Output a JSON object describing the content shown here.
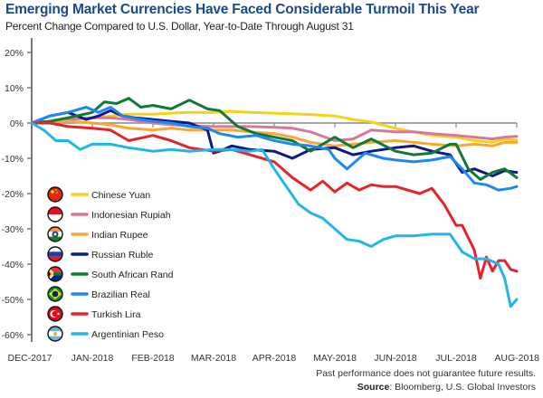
{
  "chart_data": {
    "type": "line",
    "title": "Emerging Market Currencies Have Faced Considerable Turmoil This Year",
    "subtitle": "Percent Change Compared to U.S. Dollar, Year-to-Date Through August 31",
    "xlabel": "",
    "ylabel": "",
    "x_ticks": [
      "DEC-2017",
      "JAN-2018",
      "FEB-2018",
      "MAR-2018",
      "APR-2018",
      "MAY-2018",
      "JUN-2018",
      "JUL-2018",
      "AUG-2018"
    ],
    "x_unit": "months since DEC-2017",
    "xlim": [
      0,
      8
    ],
    "y_ticks": [
      20,
      10,
      0,
      -10,
      -20,
      -30,
      -40,
      -50,
      -60
    ],
    "y_tick_labels": [
      "20%",
      "10%",
      "0%",
      "-10%",
      "-20%",
      "-30%",
      "-40%",
      "-50%",
      "-60%"
    ],
    "ylim": [
      -62,
      25
    ],
    "grid": false,
    "legend_position": "left-center",
    "series": [
      {
        "name": "Chinese Yuan",
        "color": "#f7d117",
        "flag": "china",
        "x": [
          0,
          0.3,
          0.6,
          1.0,
          1.3,
          1.6,
          2.0,
          2.3,
          2.6,
          3.0,
          3.3,
          3.6,
          4.0,
          4.3,
          4.6,
          5.0,
          5.3,
          5.6,
          6.0,
          6.3,
          6.6,
          7.0,
          7.3,
          7.6,
          7.8,
          8.0
        ],
        "y": [
          0,
          0.5,
          1.0,
          1.5,
          2.0,
          2.5,
          2.5,
          2.8,
          3.0,
          3.0,
          3.3,
          3.0,
          2.8,
          2.6,
          2.4,
          2.0,
          1.0,
          0.3,
          -1.5,
          -2.5,
          -3.5,
          -4.0,
          -5.0,
          -5.5,
          -4.5,
          -4.8
        ]
      },
      {
        "name": "Indonesian Rupiah",
        "color": "#d9779a",
        "flag": "indonesia",
        "x": [
          0,
          0.3,
          0.6,
          1.0,
          1.3,
          1.6,
          2.0,
          2.3,
          2.6,
          3.0,
          3.3,
          3.6,
          4.0,
          4.3,
          4.6,
          5.0,
          5.3,
          5.6,
          6.0,
          6.3,
          6.6,
          7.0,
          7.3,
          7.6,
          7.8,
          8.0
        ],
        "y": [
          0,
          0.5,
          1.0,
          1.5,
          1.5,
          1.0,
          0.0,
          -0.5,
          -0.8,
          -1.0,
          -1.0,
          -1.0,
          -1.2,
          -1.5,
          -2.5,
          -5.0,
          -4.5,
          -2.0,
          -2.5,
          -2.5,
          -3.0,
          -3.5,
          -4.0,
          -4.5,
          -4.0,
          -3.8
        ]
      },
      {
        "name": "Indian Rupee",
        "color": "#f8a830",
        "flag": "india",
        "x": [
          0,
          0.3,
          0.6,
          1.0,
          1.3,
          1.6,
          2.0,
          2.3,
          2.6,
          3.0,
          3.3,
          3.6,
          4.0,
          4.3,
          4.6,
          5.0,
          5.3,
          5.6,
          6.0,
          6.3,
          6.6,
          7.0,
          7.3,
          7.6,
          7.8,
          8.0
        ],
        "y": [
          0,
          0.2,
          0.5,
          0.0,
          -0.5,
          -1.5,
          -2.0,
          -1.5,
          -2.0,
          -2.0,
          -2.0,
          -2.5,
          -3.0,
          -4.0,
          -5.5,
          -6.5,
          -6.0,
          -5.5,
          -5.0,
          -5.5,
          -6.0,
          -6.5,
          -6.0,
          -6.5,
          -5.5,
          -5.5
        ]
      },
      {
        "name": "Russian Ruble",
        "color": "#0c1b87",
        "flag": "russia",
        "x": [
          0,
          0.3,
          0.6,
          0.9,
          1.1,
          1.3,
          1.5,
          1.7,
          2.0,
          2.3,
          2.6,
          2.9,
          3.0,
          3.1,
          3.3,
          3.6,
          4.0,
          4.3,
          4.6,
          5.0,
          5.3,
          5.6,
          6.0,
          6.3,
          6.6,
          6.9,
          7.1,
          7.3,
          7.6,
          7.8,
          8.0
        ],
        "y": [
          0,
          2.0,
          3.0,
          1.0,
          2.0,
          3.5,
          2.0,
          1.5,
          1.0,
          0.5,
          0.0,
          -2.0,
          -8.5,
          -8.0,
          -6.5,
          -7.5,
          -8.0,
          -10.0,
          -7.5,
          -7.0,
          -9.0,
          -8.0,
          -7.0,
          -6.5,
          -8.0,
          -9.0,
          -14.0,
          -13.0,
          -15.0,
          -13.5,
          -14.0
        ]
      },
      {
        "name": "South African Rand",
        "color": "#0f7a35",
        "flag": "south-africa",
        "x": [
          0,
          0.3,
          0.6,
          1.0,
          1.2,
          1.4,
          1.6,
          1.8,
          2.0,
          2.3,
          2.6,
          2.9,
          3.1,
          3.4,
          3.7,
          4.0,
          4.3,
          4.6,
          5.0,
          5.3,
          5.6,
          6.0,
          6.3,
          6.6,
          6.9,
          7.0,
          7.2,
          7.4,
          7.6,
          7.8,
          8.0
        ],
        "y": [
          0,
          0.5,
          1.5,
          3.0,
          6.0,
          5.5,
          7.0,
          4.5,
          5.0,
          4.0,
          6.5,
          4.0,
          3.5,
          -1.0,
          -3.0,
          -4.0,
          -5.0,
          -8.0,
          -4.0,
          -7.0,
          -4.5,
          -8.0,
          -9.0,
          -8.5,
          -6.0,
          -6.0,
          -13.0,
          -16.0,
          -14.0,
          -13.0,
          -15.5
        ]
      },
      {
        "name": "Brazilian Real",
        "color": "#1e88f0",
        "flag": "brazil",
        "x": [
          0,
          0.3,
          0.6,
          0.9,
          1.1,
          1.3,
          1.5,
          1.8,
          2.0,
          2.3,
          2.6,
          2.9,
          3.1,
          3.4,
          3.7,
          4.0,
          4.3,
          4.6,
          4.9,
          5.0,
          5.2,
          5.5,
          5.8,
          6.0,
          6.3,
          6.6,
          6.9,
          7.1,
          7.3,
          7.5,
          7.7,
          7.9,
          8.0
        ],
        "y": [
          0,
          2.0,
          3.0,
          4.5,
          3.0,
          4.5,
          2.0,
          1.0,
          0.5,
          0.0,
          -1.0,
          -1.5,
          -3.0,
          -4.0,
          -3.5,
          -5.0,
          -6.0,
          -6.5,
          -7.5,
          -10.0,
          -13.0,
          -8.5,
          -10.0,
          -10.5,
          -11.0,
          -10.5,
          -9.5,
          -13.0,
          -17.0,
          -17.5,
          -19.0,
          -18.5,
          -18.0
        ]
      },
      {
        "name": "Turkish Lira",
        "color": "#e5232b",
        "flag": "turkey",
        "x": [
          0,
          0.3,
          0.6,
          1.0,
          1.3,
          1.6,
          2.0,
          2.3,
          2.6,
          3.0,
          3.3,
          3.6,
          4.0,
          4.3,
          4.6,
          4.8,
          5.0,
          5.2,
          5.4,
          5.6,
          5.8,
          6.0,
          6.2,
          6.4,
          6.6,
          6.8,
          7.0,
          7.1,
          7.3,
          7.4,
          7.5,
          7.6,
          7.7,
          7.8,
          7.9,
          8.0
        ],
        "y": [
          0,
          0.0,
          -1.0,
          -1.5,
          -2.0,
          -5.0,
          -3.5,
          -5.0,
          -7.0,
          -8.0,
          -7.5,
          -9.0,
          -11.0,
          -15.5,
          -19.0,
          -16.5,
          -19.5,
          -17.0,
          -19.0,
          -17.5,
          -18.0,
          -18.0,
          -19.0,
          -20.0,
          -18.5,
          -23.0,
          -29.0,
          -29.0,
          -36.0,
          -44.0,
          -38.0,
          -42.0,
          -39.0,
          -39.0,
          -41.5,
          -42.0
        ]
      },
      {
        "name": "Argentinian Peso",
        "color": "#22b5e8",
        "flag": "argentina",
        "x": [
          0,
          0.2,
          0.4,
          0.6,
          0.8,
          1.0,
          1.3,
          1.6,
          2.0,
          2.3,
          2.6,
          3.0,
          3.3,
          3.6,
          3.8,
          4.0,
          4.2,
          4.4,
          4.6,
          4.8,
          5.0,
          5.2,
          5.4,
          5.6,
          5.8,
          6.0,
          6.3,
          6.6,
          6.9,
          7.1,
          7.3,
          7.5,
          7.7,
          7.8,
          7.9,
          8.0
        ],
        "y": [
          0,
          -2.0,
          -5.0,
          -5.0,
          -7.5,
          -6.0,
          -6.0,
          -7.0,
          -8.0,
          -7.5,
          -8.0,
          -7.5,
          -7.5,
          -8.0,
          -7.5,
          -13.0,
          -18.0,
          -23.0,
          -25.5,
          -27.0,
          -30.0,
          -33.0,
          -33.5,
          -35.0,
          -33.0,
          -32.0,
          -32.0,
          -31.5,
          -31.5,
          -36.5,
          -38.5,
          -38.5,
          -40.0,
          -44.0,
          -52.0,
          -50.0
        ]
      }
    ]
  },
  "footnotes": {
    "disclaimer": "Past performance does not guarantee future results.",
    "source_label": "Source",
    "source_text": ": Bloomberg, U.S. Global Investors"
  }
}
